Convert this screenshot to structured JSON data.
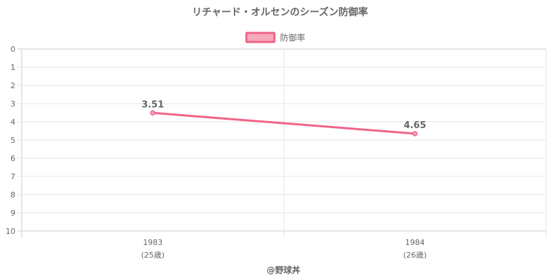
{
  "chart_data": {
    "type": "line",
    "title": "リチャード・オルセンのシーズン防御率",
    "x": [
      "1983",
      "1984"
    ],
    "x_sublabels": [
      "(25歳)",
      "(26歳)"
    ],
    "series": [
      {
        "name": "防御率",
        "values": [
          3.51,
          4.65
        ],
        "data_labels": [
          "3.51",
          "4.65"
        ]
      }
    ],
    "y_ticks": [
      "0",
      "1",
      "2",
      "3",
      "4",
      "5",
      "6",
      "7",
      "8",
      "9",
      "10"
    ],
    "ylim": [
      0,
      10
    ],
    "y_reversed": true,
    "grid": true,
    "legend_position": "top",
    "colors": {
      "line": "#f06488",
      "legend_fill": "#f7a8bd",
      "grid": "#e6e6e6",
      "text": "#666666"
    }
  },
  "credit": "@野球丼"
}
